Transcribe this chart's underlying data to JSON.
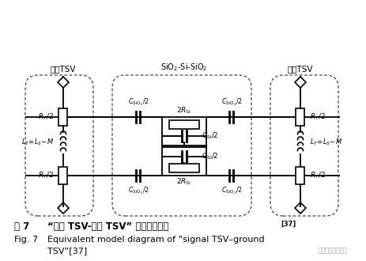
{
  "bg_color": "#ffffff",
  "line_color": "#000000",
  "label_signal": "信号TSV",
  "label_ground": "接地TSV",
  "label_sio2": "SiO$_2$-Si-SiO$_2$",
  "title_cn_1": "图 7",
  "title_cn_2": "“信号 TSV-接地 TSV” 的等效模型图",
  "title_cn_super": "[37]",
  "title_en_1": "Fig. 7",
  "title_en_2": "Equivalent model diagram of ”signal TSV–ground",
  "title_en_3": "TSV”",
  "title_en_super": "[37]",
  "watermark": "半导体材料与工艺"
}
